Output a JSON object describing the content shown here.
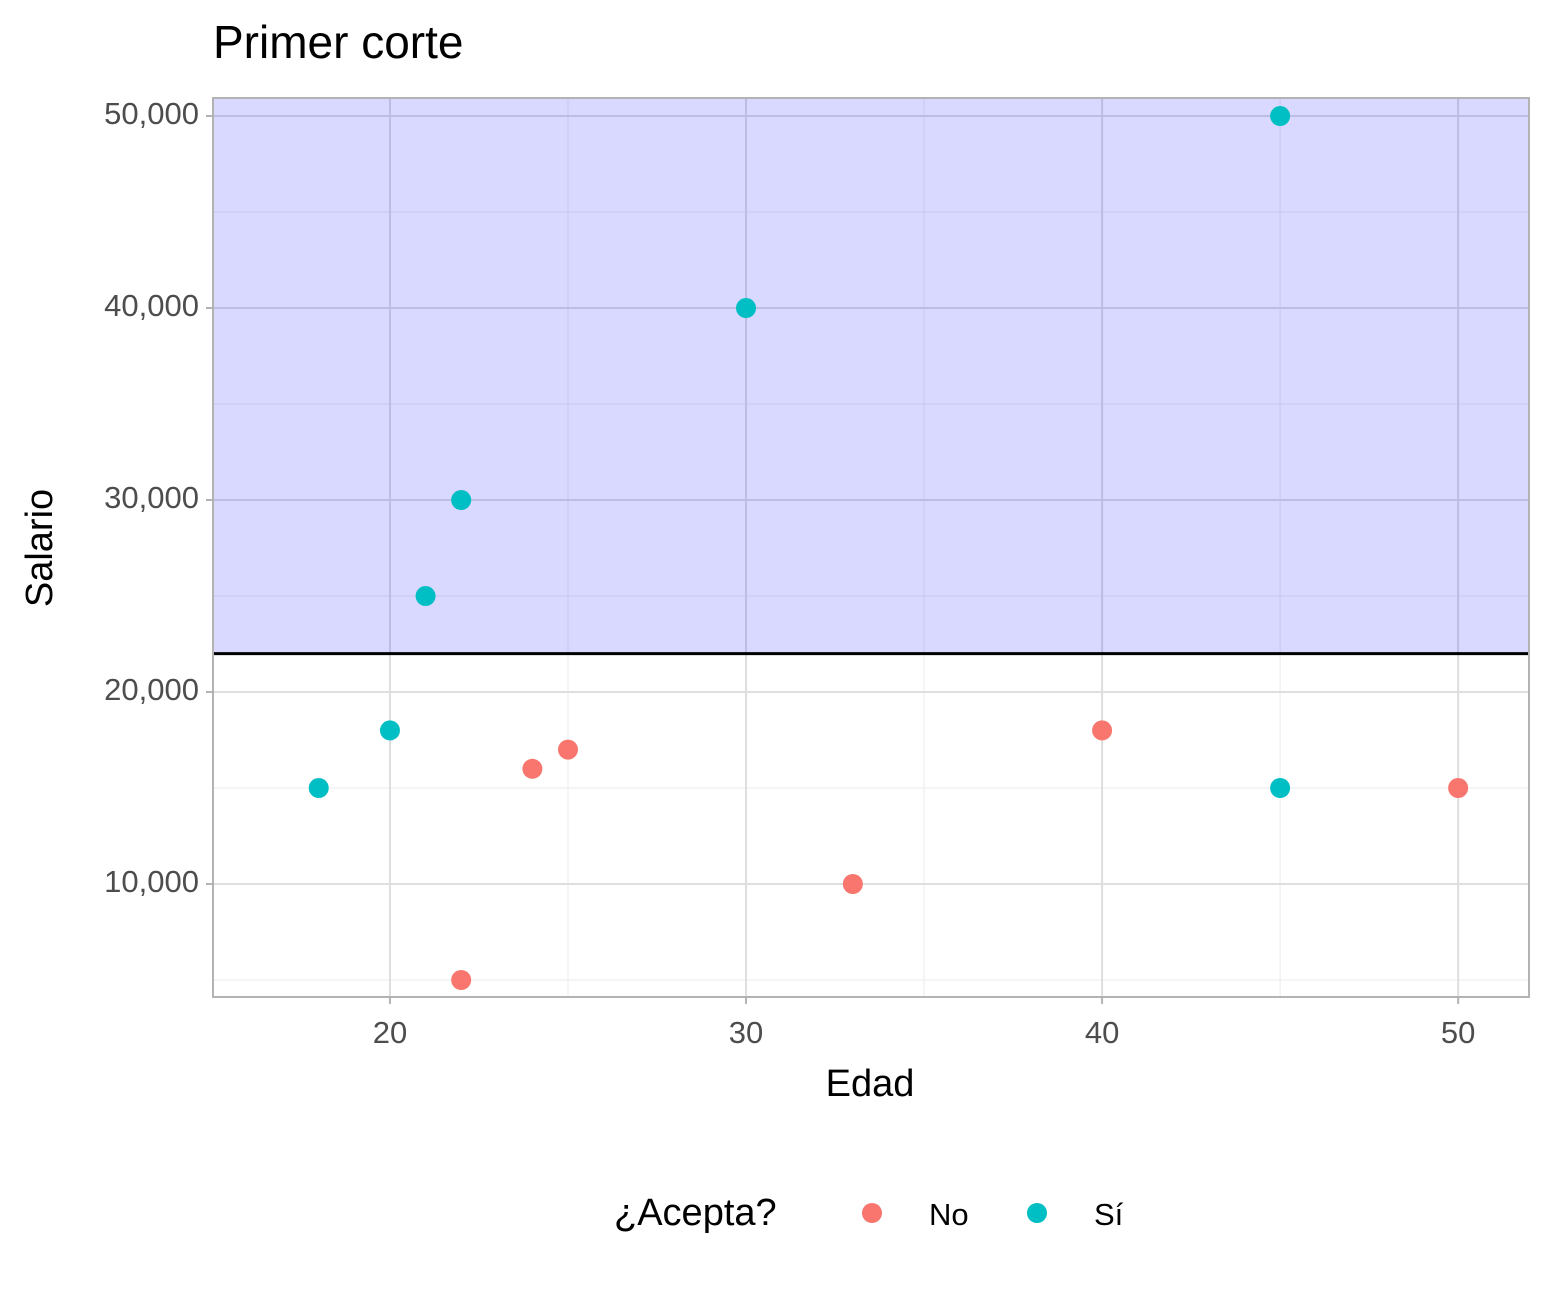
{
  "chart_data": {
    "type": "scatter",
    "title": "Primer corte",
    "x_label": "Edad",
    "y_label": "Salario",
    "legend_title": "¿Acepta?",
    "series": [
      {
        "name": "No",
        "color": "#F8766D",
        "x": [
          22,
          24,
          25,
          33,
          40,
          50
        ],
        "values": [
          5000,
          16000,
          17000,
          10000,
          18000,
          15000
        ]
      },
      {
        "name": "Sí",
        "color": "#00BFC4",
        "x": [
          18,
          20,
          21,
          22,
          30,
          45,
          45
        ],
        "values": [
          15000,
          18000,
          25000,
          30000,
          40000,
          50000,
          15000
        ]
      }
    ],
    "xlim": [
      15.03,
      51.99
    ],
    "xticks": [
      20,
      30,
      40,
      50
    ],
    "xminor": [
      25,
      35,
      45
    ],
    "ylim": [
      4115,
      50938
    ],
    "yticks": [
      {
        "value": 10000,
        "label": "10,000"
      },
      {
        "value": 20000,
        "label": "20,000"
      },
      {
        "value": 30000,
        "label": "30,000"
      },
      {
        "value": 40000,
        "label": "40,000"
      },
      {
        "value": 50000,
        "label": "50,000"
      }
    ],
    "yminor": [
      5000,
      15000,
      25000,
      35000,
      45000
    ],
    "hline": 22000,
    "shade_color": "#0000ff",
    "grid": true,
    "legend_position": "bottom"
  }
}
